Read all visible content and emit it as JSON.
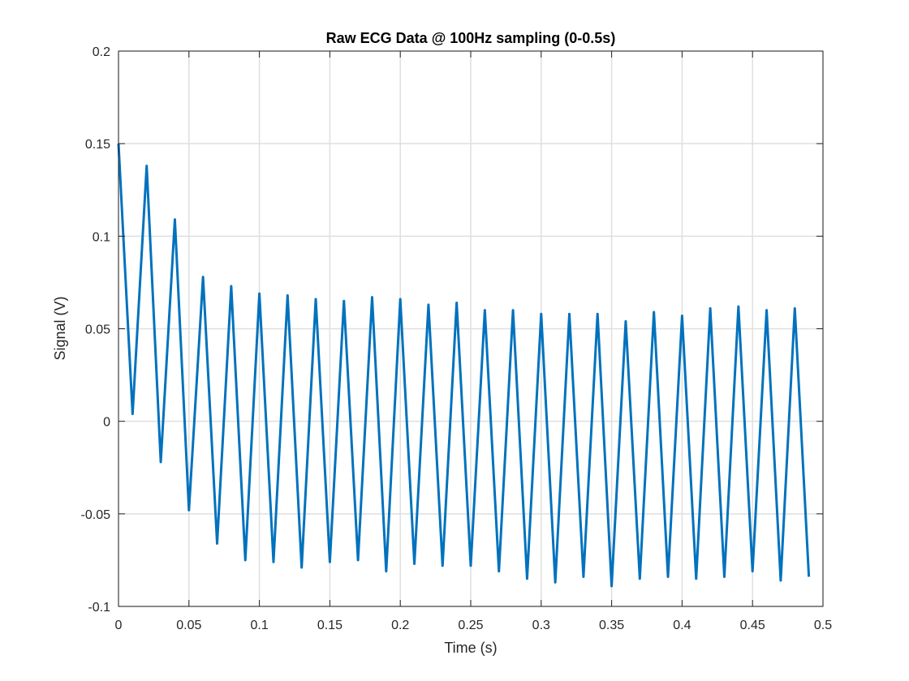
{
  "chart_data": {
    "type": "line",
    "title": "Raw ECG Data @ 100Hz sampling (0-0.5s)",
    "xlabel": "Time (s)",
    "ylabel": "Signal (V)",
    "xlim": [
      0,
      0.5
    ],
    "ylim": [
      -0.1,
      0.2
    ],
    "xticks": [
      0,
      0.05,
      0.1,
      0.15,
      0.2,
      0.25,
      0.3,
      0.35,
      0.4,
      0.45,
      0.5
    ],
    "xtick_labels": [
      "0",
      "0.05",
      "0.1",
      "0.15",
      "0.2",
      "0.25",
      "0.3",
      "0.35",
      "0.4",
      "0.45",
      "0.5"
    ],
    "yticks": [
      -0.1,
      -0.05,
      0,
      0.05,
      0.1,
      0.15,
      0.2
    ],
    "ytick_labels": [
      "-0.1",
      "-0.05",
      "0",
      "0.05",
      "0.1",
      "0.15",
      "0.2"
    ],
    "grid": true,
    "box": true,
    "series": [
      {
        "color": "#0072bd",
        "x": [
          0,
          0.01,
          0.02,
          0.03,
          0.04,
          0.05,
          0.06,
          0.07,
          0.08,
          0.09,
          0.1,
          0.11,
          0.12,
          0.13,
          0.14,
          0.15,
          0.16,
          0.17,
          0.18,
          0.19,
          0.2,
          0.21,
          0.22,
          0.23,
          0.24,
          0.25,
          0.26,
          0.27,
          0.28,
          0.29,
          0.3,
          0.31,
          0.32,
          0.33,
          0.34,
          0.35,
          0.36,
          0.37,
          0.38,
          0.39,
          0.4,
          0.41,
          0.42,
          0.43,
          0.44,
          0.45,
          0.46,
          0.47,
          0.48,
          0.49
        ],
        "y": [
          0.15,
          0.004,
          0.138,
          -0.022,
          0.109,
          -0.048,
          0.078,
          -0.066,
          0.073,
          -0.075,
          0.069,
          -0.076,
          0.068,
          -0.079,
          0.066,
          -0.076,
          0.065,
          -0.075,
          0.067,
          -0.081,
          0.066,
          -0.077,
          0.063,
          -0.078,
          0.064,
          -0.078,
          0.06,
          -0.081,
          0.06,
          -0.085,
          0.058,
          -0.087,
          0.058,
          -0.084,
          0.058,
          -0.089,
          0.054,
          -0.085,
          0.059,
          -0.084,
          0.057,
          -0.085,
          0.061,
          -0.084,
          0.062,
          -0.081,
          0.06,
          -0.086,
          0.061,
          -0.084
        ]
      }
    ]
  }
}
